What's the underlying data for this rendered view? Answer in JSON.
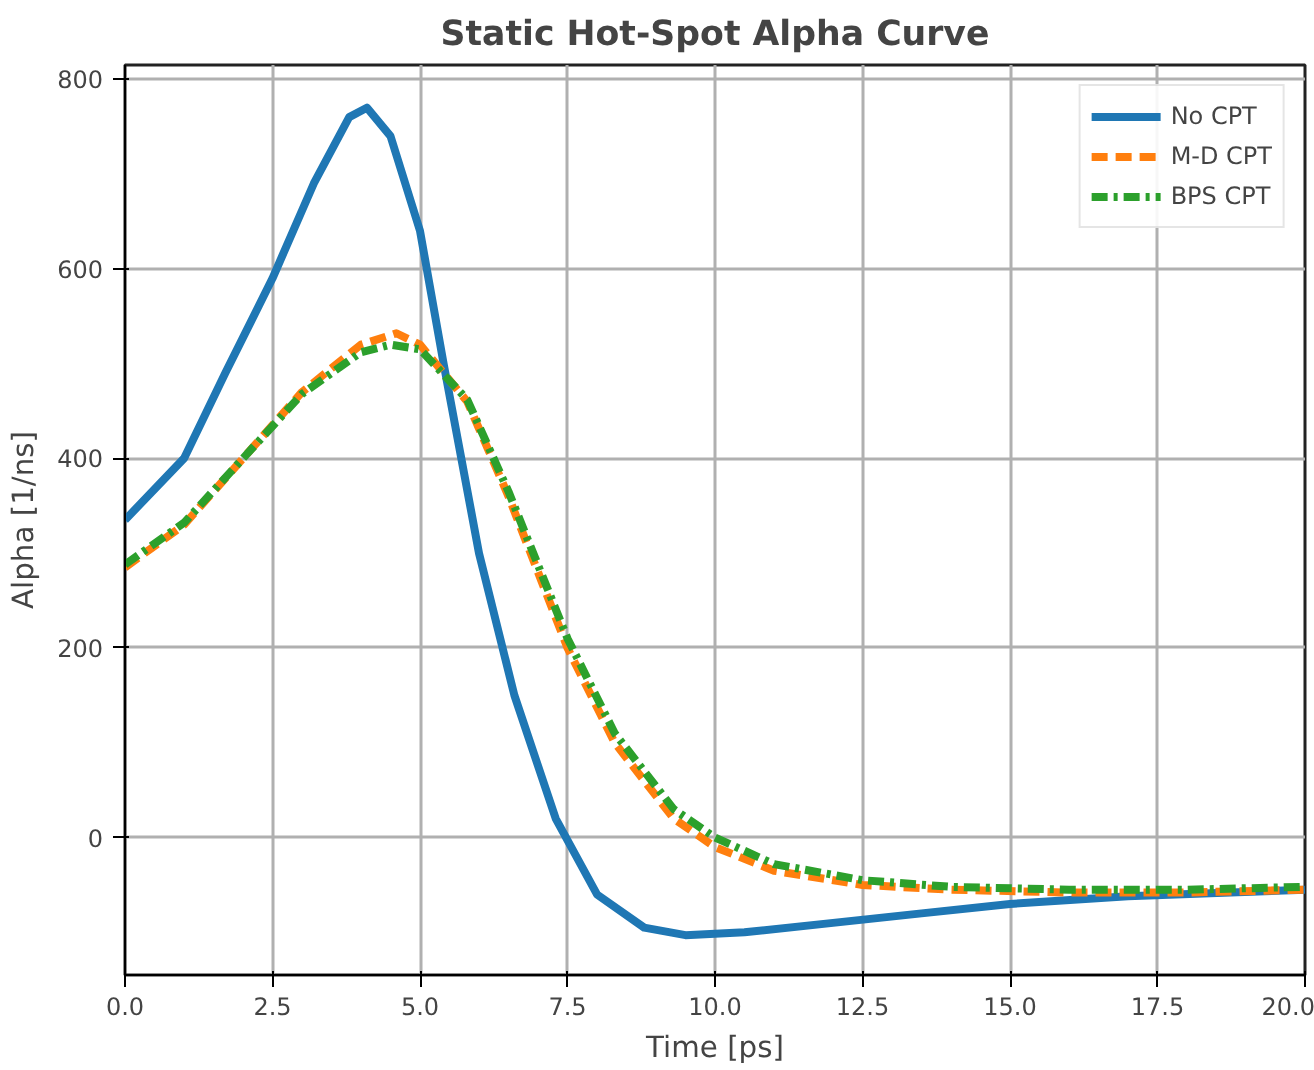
{
  "chart_data": {
    "type": "line",
    "title": "Static Hot-Spot Alpha Curve",
    "xlabel": "Time [ps]",
    "ylabel": "Alpha [1/ns]",
    "xlim": [
      0,
      20
    ],
    "ylim": [
      -145,
      815
    ],
    "xticks": [
      {
        "value": 0,
        "label": "0.0"
      },
      {
        "value": 2.5,
        "label": "2.5"
      },
      {
        "value": 5,
        "label": "5.0"
      },
      {
        "value": 7.5,
        "label": "7.5"
      },
      {
        "value": 10,
        "label": "10.0"
      },
      {
        "value": 12.5,
        "label": "12.5"
      },
      {
        "value": 15,
        "label": "15.0"
      },
      {
        "value": 17.5,
        "label": "17.5"
      },
      {
        "value": 20,
        "label": "20.0"
      }
    ],
    "yticks": [
      0,
      200,
      400,
      600,
      800
    ],
    "grid": true,
    "legend": "top right",
    "series": [
      {
        "name": "No CPT",
        "color": "#1f77b4",
        "line_style": "solid",
        "x": [
          0,
          1,
          1.7,
          2.5,
          3.2,
          3.8,
          4.1,
          4.5,
          5,
          5.4,
          6,
          6.6,
          7.3,
          8,
          8.8,
          9.5,
          10.5,
          12,
          13.5,
          15,
          17,
          20
        ],
        "values": [
          335,
          400,
          490,
          590,
          690,
          760,
          770,
          740,
          640,
          500,
          300,
          150,
          20,
          -60,
          -95,
          -103,
          -100,
          -90,
          -80,
          -70,
          -62,
          -55
        ]
      },
      {
        "name": "M-D CPT",
        "color": "#ff7f0e",
        "line_style": "dashed",
        "x": [
          0,
          1,
          2,
          3,
          4,
          4.6,
          5,
          5.8,
          6.5,
          7.5,
          8.3,
          9.3,
          10,
          11,
          12.5,
          14,
          16,
          18,
          20
        ],
        "values": [
          285,
          330,
          400,
          470,
          520,
          532,
          520,
          460,
          360,
          200,
          100,
          20,
          -10,
          -35,
          -50,
          -55,
          -58,
          -58,
          -55
        ]
      },
      {
        "name": "BPS CPT",
        "color": "#2ca02c",
        "line_style": "dashdot",
        "x": [
          0,
          1,
          2,
          3,
          4,
          4.5,
          5,
          5.8,
          6.5,
          7.5,
          8.3,
          9.3,
          10,
          11,
          12.5,
          14,
          16,
          18,
          20
        ],
        "values": [
          288,
          332,
          400,
          468,
          512,
          520,
          515,
          462,
          365,
          210,
          110,
          30,
          0,
          -28,
          -45,
          -52,
          -55,
          -55,
          -52
        ]
      }
    ]
  }
}
